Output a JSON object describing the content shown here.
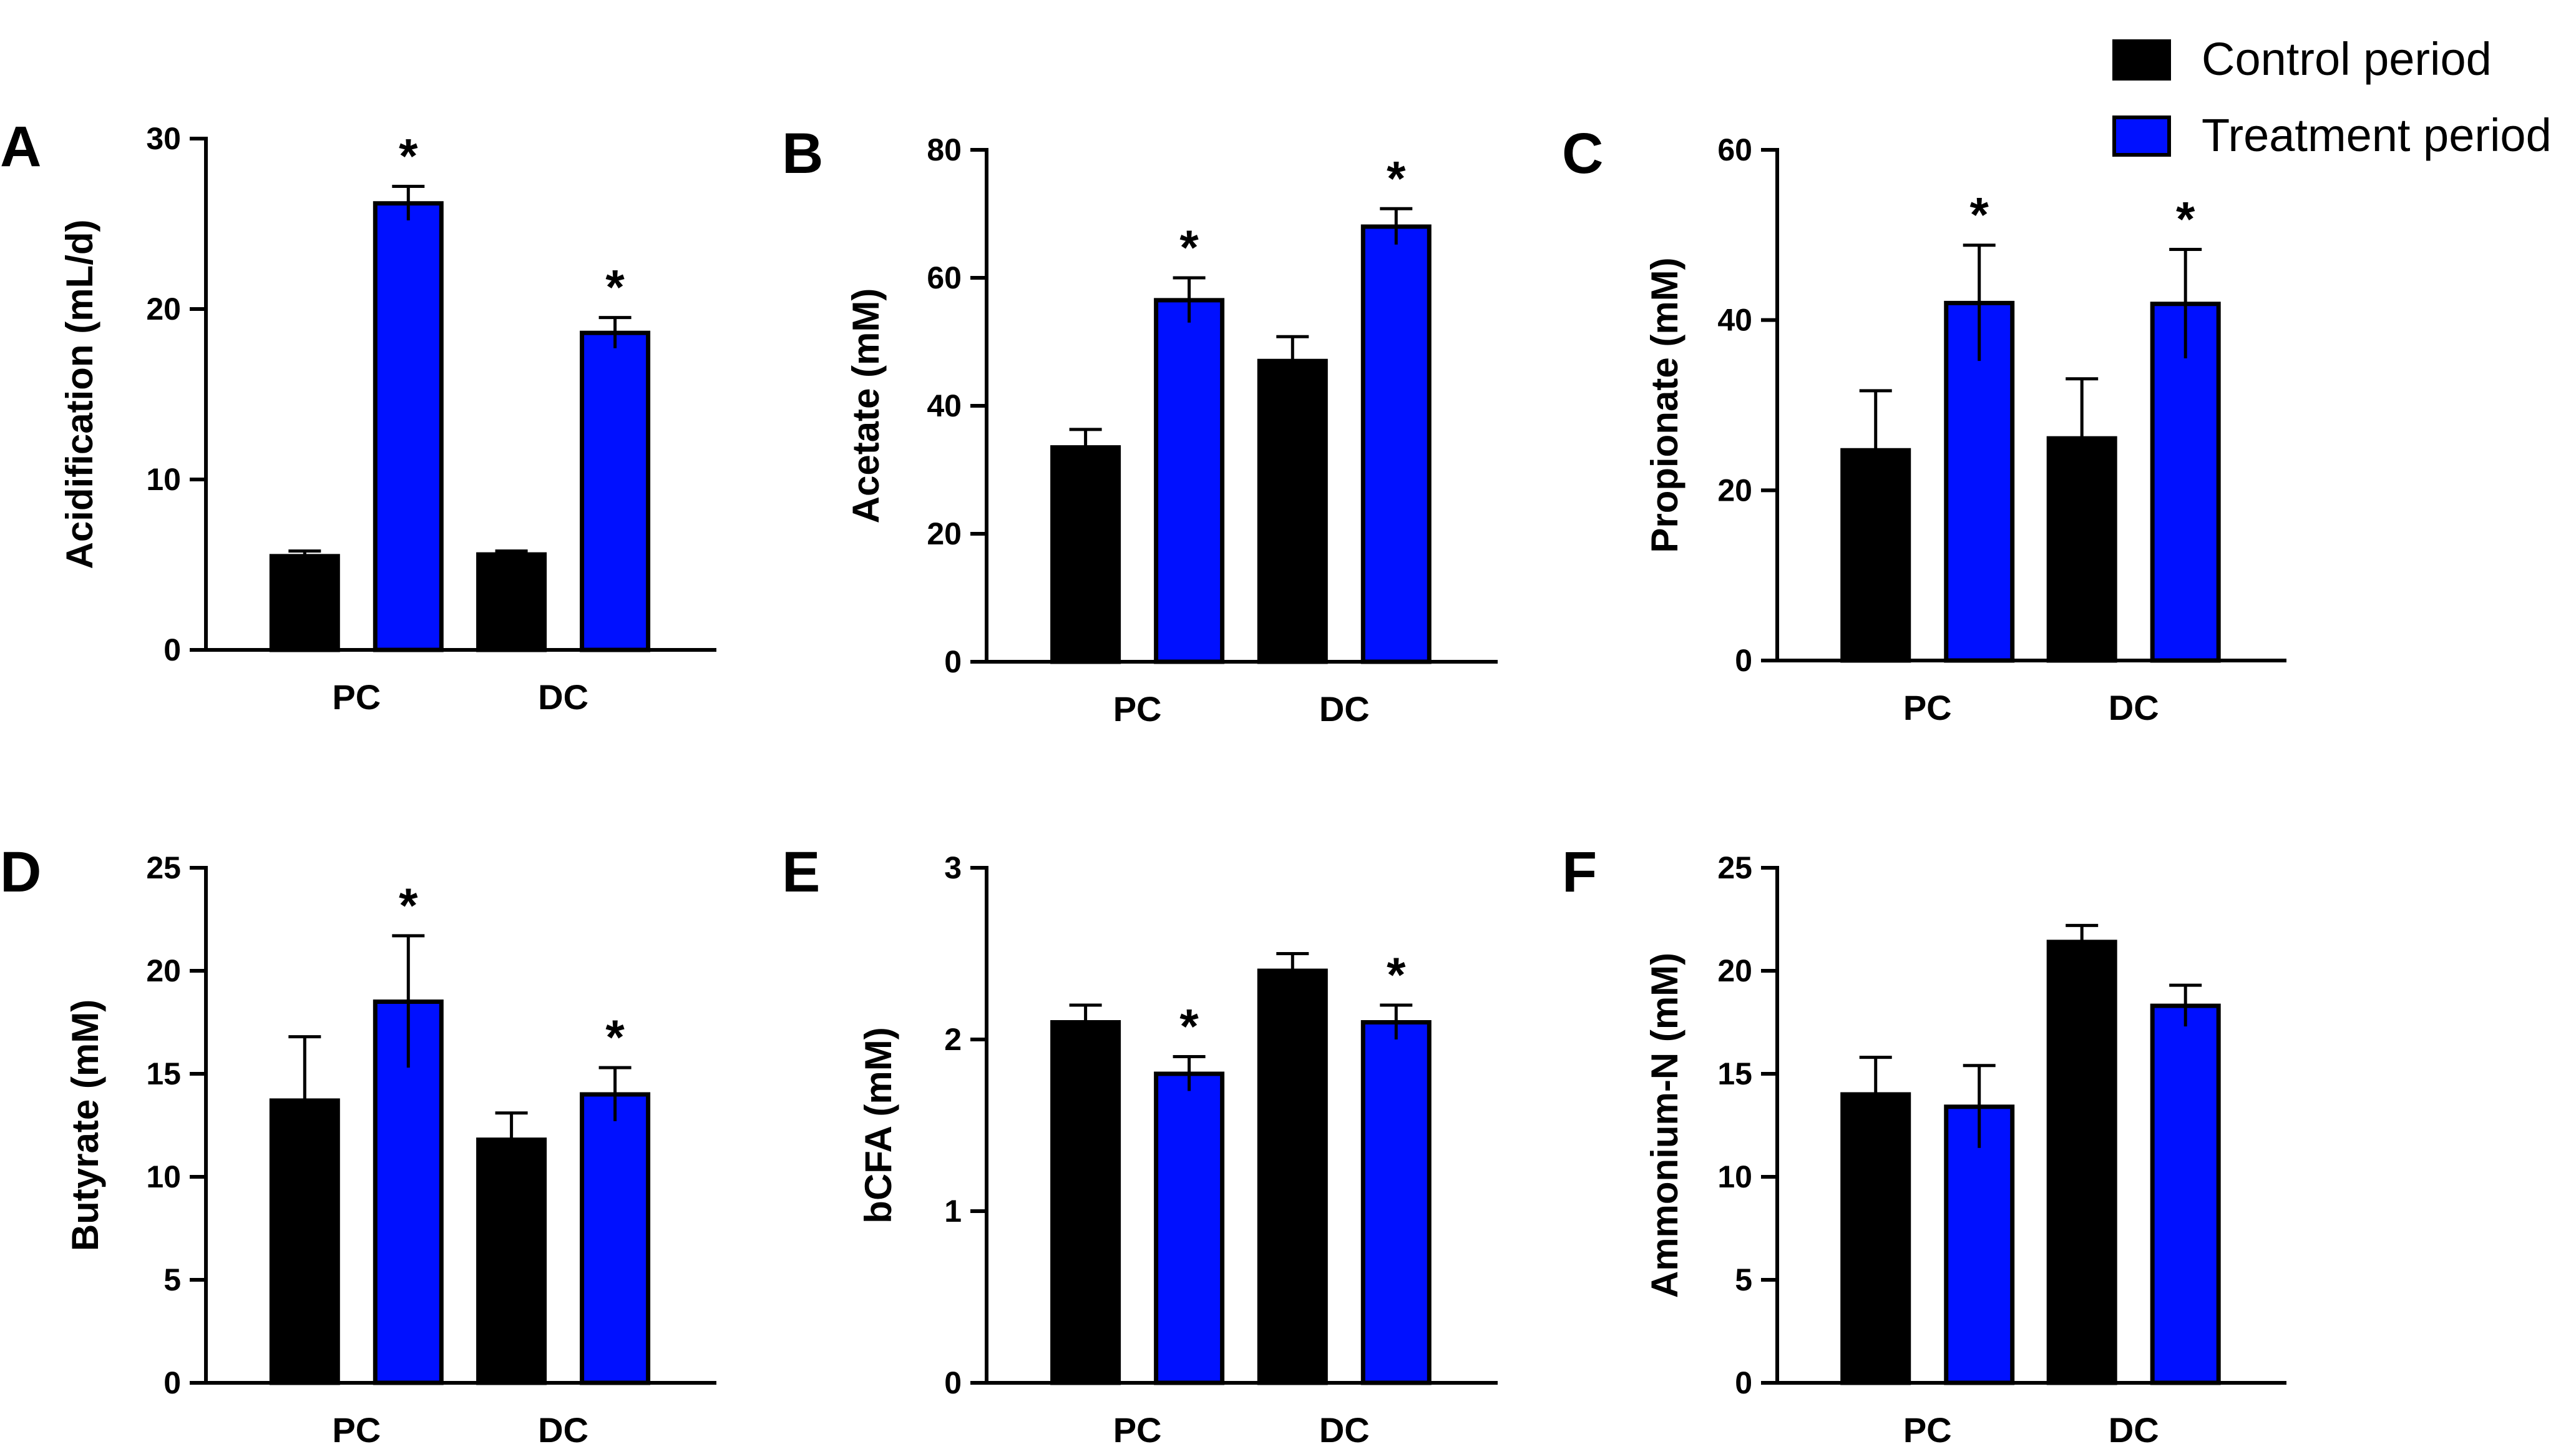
{
  "legend": {
    "items": [
      {
        "label": "Control period",
        "color": "#000000"
      },
      {
        "label": "Treatment period",
        "color": "#0010ff"
      }
    ]
  },
  "chart_data": [
    {
      "type": "bar",
      "panel": "A",
      "categories": [
        "PC",
        "DC"
      ],
      "ylabel": "Acidification (mL/d)",
      "ylim": [
        0,
        30
      ],
      "yticks": [
        0,
        10,
        20,
        30
      ],
      "series": [
        {
          "name": "Control period",
          "values": [
            5.5,
            5.6
          ],
          "errors": [
            0.3,
            0.2
          ]
        },
        {
          "name": "Treatment period",
          "values": [
            26.2,
            18.6
          ],
          "errors": [
            1.0,
            0.9
          ]
        }
      ],
      "significance": [
        {
          "category": "PC",
          "series": "Treatment period",
          "mark": "*"
        },
        {
          "category": "DC",
          "series": "Treatment period",
          "mark": "*"
        }
      ]
    },
    {
      "type": "bar",
      "panel": "B",
      "categories": [
        "PC",
        "DC"
      ],
      "ylabel": "Acetate (mM)",
      "ylim": [
        0,
        80
      ],
      "yticks": [
        0,
        20,
        40,
        60,
        80
      ],
      "series": [
        {
          "name": "Control period",
          "values": [
            33.5,
            47.0
          ],
          "errors": [
            2.8,
            3.8
          ]
        },
        {
          "name": "Treatment period",
          "values": [
            56.5,
            68.0
          ],
          "errors": [
            3.5,
            2.8
          ]
        }
      ],
      "significance": [
        {
          "category": "PC",
          "series": "Treatment period",
          "mark": "*"
        },
        {
          "category": "DC",
          "series": "Treatment period",
          "mark": "*"
        }
      ]
    },
    {
      "type": "bar",
      "panel": "C",
      "categories": [
        "PC",
        "DC"
      ],
      "ylabel": "Propionate (mM)",
      "ylim": [
        0,
        60
      ],
      "yticks": [
        0,
        20,
        40,
        60
      ],
      "series": [
        {
          "name": "Control period",
          "values": [
            24.7,
            26.1
          ],
          "errors": [
            7.0,
            7.0
          ]
        },
        {
          "name": "Treatment period",
          "values": [
            42.0,
            41.9
          ],
          "errors": [
            6.8,
            6.4
          ]
        }
      ],
      "significance": [
        {
          "category": "PC",
          "series": "Treatment period",
          "mark": "*"
        },
        {
          "category": "DC",
          "series": "Treatment period",
          "mark": "*"
        }
      ]
    },
    {
      "type": "bar",
      "panel": "D",
      "categories": [
        "PC",
        "DC"
      ],
      "ylabel": "Butyrate (mM)",
      "ylim": [
        0,
        25
      ],
      "yticks": [
        0,
        5,
        10,
        15,
        20,
        25
      ],
      "series": [
        {
          "name": "Control period",
          "values": [
            13.7,
            11.8
          ],
          "errors": [
            3.1,
            1.3
          ]
        },
        {
          "name": "Treatment period",
          "values": [
            18.5,
            14.0
          ],
          "errors": [
            3.2,
            1.3
          ]
        }
      ],
      "significance": [
        {
          "category": "PC",
          "series": "Treatment period",
          "mark": "*"
        },
        {
          "category": "DC",
          "series": "Treatment period",
          "mark": "*"
        }
      ]
    },
    {
      "type": "bar",
      "panel": "E",
      "categories": [
        "PC",
        "DC"
      ],
      "ylabel": "bCFA (mM)",
      "ylim": [
        0,
        3
      ],
      "yticks": [
        0,
        1,
        2,
        3
      ],
      "series": [
        {
          "name": "Control period",
          "values": [
            2.1,
            2.4
          ],
          "errors": [
            0.1,
            0.1
          ]
        },
        {
          "name": "Treatment period",
          "values": [
            1.8,
            2.1
          ],
          "errors": [
            0.1,
            0.1
          ]
        }
      ],
      "significance": [
        {
          "category": "PC",
          "series": "Treatment period",
          "mark": "*"
        },
        {
          "category": "DC",
          "series": "Treatment period",
          "mark": "*"
        }
      ]
    },
    {
      "type": "bar",
      "panel": "F",
      "categories": [
        "PC",
        "DC"
      ],
      "ylabel": "Ammonium-N (mM)",
      "ylim": [
        0,
        25
      ],
      "yticks": [
        0,
        5,
        10,
        15,
        20,
        25
      ],
      "series": [
        {
          "name": "Control period",
          "values": [
            14.0,
            21.4
          ],
          "errors": [
            1.8,
            0.8
          ]
        },
        {
          "name": "Treatment period",
          "values": [
            13.4,
            18.3
          ],
          "errors": [
            2.0,
            1.0
          ]
        }
      ],
      "significance": []
    }
  ]
}
